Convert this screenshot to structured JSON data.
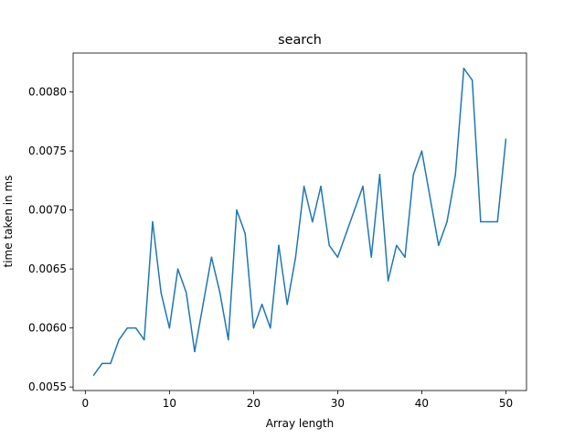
{
  "chart_data": {
    "type": "line",
    "title": "search",
    "xlabel": "Array length",
    "ylabel": "time taken in ms",
    "xlim": [
      -1.45,
      52.45
    ],
    "ylim": [
      0.00547,
      0.00833
    ],
    "xticks": [
      0,
      10,
      20,
      30,
      40,
      50
    ],
    "xtick_labels": [
      "0",
      "10",
      "20",
      "30",
      "40",
      "50"
    ],
    "yticks": [
      0.0055,
      0.006,
      0.0065,
      0.007,
      0.0075,
      0.008
    ],
    "ytick_labels": [
      "0.0055",
      "0.0060",
      "0.0065",
      "0.0070",
      "0.0075",
      "0.0080"
    ],
    "grid": false,
    "color": "#1f77b4",
    "series": [
      {
        "x": [
          1,
          2,
          3,
          4,
          5,
          6,
          7,
          8,
          9,
          10,
          11,
          12,
          13,
          14,
          15,
          16,
          17,
          18,
          19,
          20,
          21,
          22,
          23,
          24,
          25,
          26,
          27,
          28,
          29,
          30,
          31,
          32,
          33,
          34,
          35,
          36,
          37,
          38,
          39,
          40,
          41,
          42,
          43,
          44,
          45,
          46,
          47,
          48,
          49,
          50
        ],
        "values": [
          0.0056,
          0.0057,
          0.0057,
          0.0059,
          0.006,
          0.006,
          0.0059,
          0.0069,
          0.0063,
          0.006,
          0.0065,
          0.0063,
          0.0058,
          0.0062,
          0.0066,
          0.0063,
          0.0059,
          0.007,
          0.0068,
          0.006,
          0.0062,
          0.006,
          0.0067,
          0.0062,
          0.0066,
          0.0072,
          0.0069,
          0.0072,
          0.0067,
          0.0066,
          0.0068,
          0.007,
          0.0072,
          0.0066,
          0.0073,
          0.0064,
          0.0067,
          0.0066,
          0.0073,
          0.0075,
          0.0071,
          0.0067,
          0.0069,
          0.0073,
          0.0082,
          0.0081,
          0.0069,
          0.0069,
          0.0069,
          0.0076
        ]
      }
    ]
  }
}
